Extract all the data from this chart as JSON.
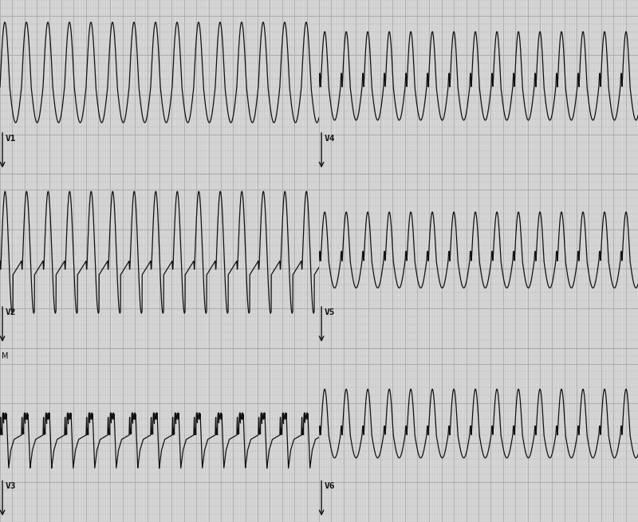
{
  "background_color": "#d8d8d8",
  "grid_minor_color": "#b8b8b8",
  "grid_major_color": "#aaaaaa",
  "line_color": "#111111",
  "text_color": "#111111",
  "fig_width": 8.0,
  "fig_height": 6.55,
  "dpi": 100,
  "leads": [
    "V1",
    "V2",
    "V3",
    "V4",
    "V5",
    "V6"
  ],
  "freq": 2.85,
  "duration": 5.2
}
